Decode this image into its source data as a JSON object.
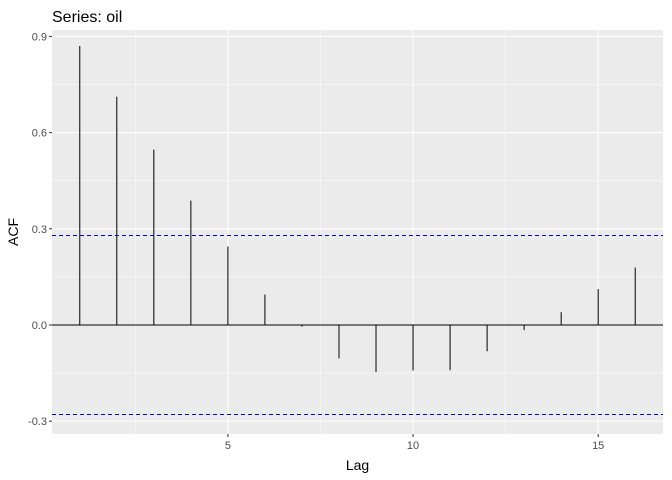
{
  "chart_data": {
    "type": "bar",
    "title": "Series: oil",
    "xlabel": "Lag",
    "ylabel": "ACF",
    "x": [
      1,
      2,
      3,
      4,
      5,
      6,
      7,
      8,
      9,
      10,
      11,
      12,
      13,
      14,
      15,
      16
    ],
    "values": [
      0.87,
      0.712,
      0.547,
      0.388,
      0.245,
      0.095,
      -0.005,
      -0.104,
      -0.147,
      -0.142,
      -0.141,
      -0.082,
      -0.016,
      0.04,
      0.112,
      0.179
    ],
    "confidence_bounds": [
      0.279,
      -0.279
    ],
    "xlim": [
      0.25,
      16.75
    ],
    "ylim": [
      -0.34,
      0.92
    ],
    "x_ticks": [
      5,
      10,
      15
    ],
    "y_ticks": [
      -0.3,
      0.0,
      0.3,
      0.6,
      0.9
    ],
    "x_tick_labels": [
      "5",
      "10",
      "15"
    ],
    "y_tick_labels": [
      "-0.3",
      "0.0",
      "0.3",
      "0.6",
      "0.9"
    ],
    "grid": true,
    "colors": {
      "panel_background": "#ebebeb",
      "grid_major": "#ffffff",
      "bars": "#000000",
      "confidence_lines": "#0000cc",
      "zero_line": "#000000",
      "tick_text": "#4d4d4d"
    }
  }
}
